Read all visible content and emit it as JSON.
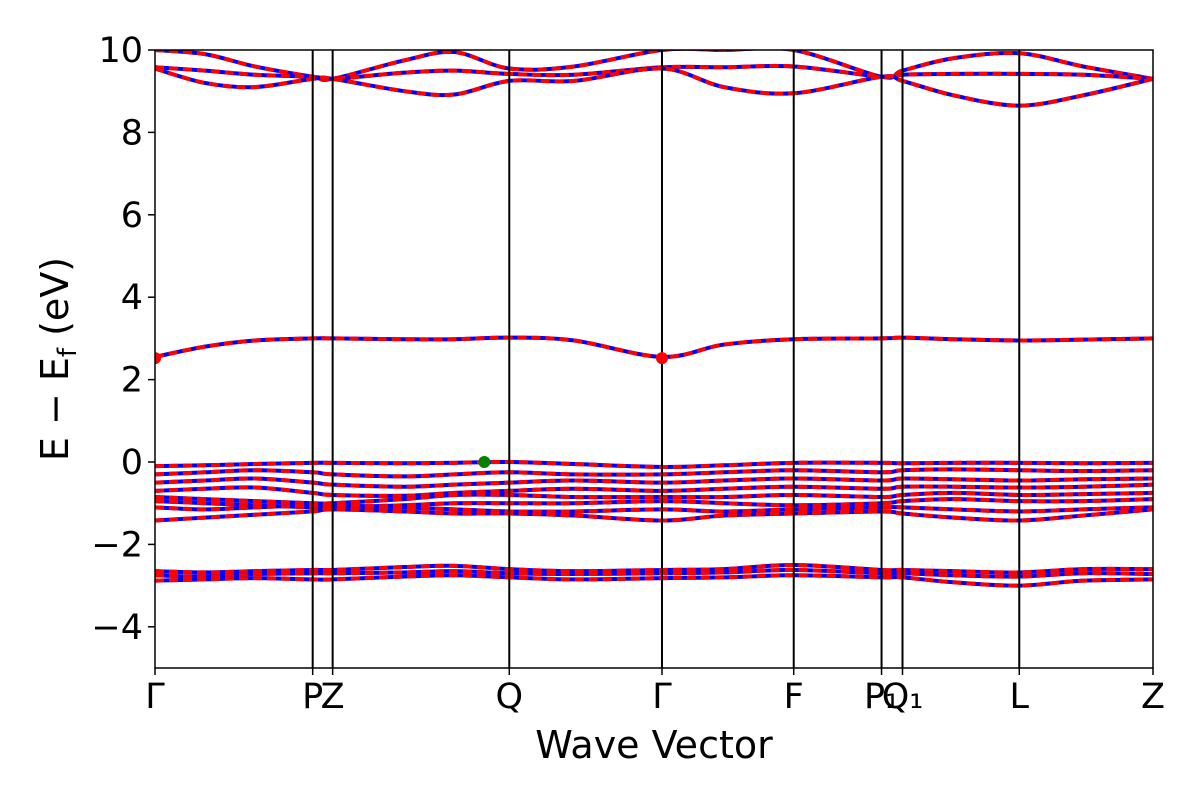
{
  "chart_data": {
    "type": "line",
    "title": "",
    "xlabel": "Wave Vector",
    "ylabel": "E − E",
    "ylabel_sub": "f",
    "ylabel_unit": " (eV)",
    "ylim": [
      -5,
      10
    ],
    "y_ticks": [
      {
        "value": -4,
        "label": "−4"
      },
      {
        "value": -2,
        "label": "−2"
      },
      {
        "value": 0,
        "label": "0"
      },
      {
        "value": 2,
        "label": "2"
      },
      {
        "value": 4,
        "label": "4"
      },
      {
        "value": 6,
        "label": "6"
      },
      {
        "value": 8,
        "label": "8"
      },
      {
        "value": 10,
        "label": "10"
      }
    ],
    "kpath": [
      {
        "label": "Γ",
        "position": 0.0
      },
      {
        "label": "P",
        "position": 0.158
      },
      {
        "label": "Z",
        "position": 0.178
      },
      {
        "label": "Q",
        "position": 0.355
      },
      {
        "label": "Γ",
        "position": 0.508
      },
      {
        "label": "F",
        "position": 0.64
      },
      {
        "label": "P₁",
        "position": 0.728
      },
      {
        "label": "Q₁",
        "position": 0.749
      },
      {
        "label": "L",
        "position": 0.866
      },
      {
        "label": "Z",
        "position": 1.0
      }
    ],
    "xlim": [
      0,
      1
    ],
    "series_colors": {
      "spin_up": "#0000ff",
      "spin_down": "#ff0000"
    },
    "bands": [
      {
        "group": "conduction-high",
        "x": [
          0,
          0.05,
          0.1,
          0.158,
          0.178,
          0.25,
          0.3,
          0.355,
          0.42,
          0.508,
          0.57,
          0.64,
          0.728,
          0.749,
          0.8,
          0.866,
          0.93,
          1.0
        ],
        "y": [
          10.0,
          9.9,
          9.6,
          9.35,
          9.3,
          9.75,
          9.95,
          9.55,
          9.6,
          10.0,
          10.0,
          10.0,
          9.35,
          9.5,
          9.8,
          9.92,
          9.6,
          9.3
        ]
      },
      {
        "group": "conduction-high",
        "x": [
          0,
          0.05,
          0.1,
          0.158,
          0.178,
          0.25,
          0.3,
          0.355,
          0.42,
          0.508,
          0.57,
          0.64,
          0.728,
          0.749,
          0.8,
          0.866,
          0.93,
          1.0
        ],
        "y": [
          9.58,
          9.5,
          9.4,
          9.35,
          9.3,
          9.45,
          9.5,
          9.42,
          9.4,
          9.58,
          9.58,
          9.6,
          9.35,
          9.4,
          9.42,
          9.42,
          9.4,
          9.3
        ]
      },
      {
        "group": "conduction-high",
        "x": [
          0,
          0.05,
          0.1,
          0.158,
          0.178,
          0.25,
          0.3,
          0.355,
          0.42,
          0.508,
          0.57,
          0.64,
          0.728,
          0.749,
          0.8,
          0.866,
          0.93,
          1.0
        ],
        "y": [
          9.55,
          9.2,
          9.1,
          9.3,
          9.3,
          9.0,
          8.92,
          9.25,
          9.25,
          9.55,
          9.1,
          8.95,
          9.35,
          9.25,
          8.9,
          8.65,
          8.9,
          9.3
        ]
      },
      {
        "group": "conduction-mid",
        "x": [
          0,
          0.05,
          0.1,
          0.158,
          0.178,
          0.25,
          0.3,
          0.355,
          0.42,
          0.508,
          0.57,
          0.64,
          0.728,
          0.749,
          0.8,
          0.866,
          0.93,
          1.0
        ],
        "y": [
          2.55,
          2.8,
          2.95,
          3.0,
          3.0,
          2.98,
          2.98,
          3.02,
          2.95,
          2.55,
          2.85,
          2.98,
          3.0,
          3.02,
          2.98,
          2.95,
          2.97,
          3.0
        ]
      },
      {
        "group": "valence",
        "x": [
          0,
          0.05,
          0.1,
          0.158,
          0.178,
          0.25,
          0.3,
          0.355,
          0.42,
          0.508,
          0.57,
          0.64,
          0.728,
          0.749,
          0.8,
          0.866,
          0.93,
          1.0
        ],
        "y": [
          -0.1,
          -0.08,
          -0.05,
          -0.02,
          -0.02,
          -0.03,
          -0.02,
          0.0,
          -0.05,
          -0.12,
          -0.08,
          -0.02,
          -0.02,
          -0.03,
          -0.02,
          -0.02,
          -0.03,
          -0.02
        ]
      },
      {
        "group": "valence",
        "x": [
          0,
          0.05,
          0.1,
          0.158,
          0.178,
          0.25,
          0.3,
          0.355,
          0.42,
          0.508,
          0.57,
          0.64,
          0.728,
          0.749,
          0.8,
          0.866,
          0.93,
          1.0
        ],
        "y": [
          -0.3,
          -0.25,
          -0.2,
          -0.25,
          -0.3,
          -0.35,
          -0.3,
          -0.25,
          -0.3,
          -0.3,
          -0.25,
          -0.2,
          -0.25,
          -0.2,
          -0.18,
          -0.2,
          -0.22,
          -0.2
        ]
      },
      {
        "group": "valence",
        "x": [
          0,
          0.05,
          0.1,
          0.158,
          0.178,
          0.25,
          0.3,
          0.355,
          0.42,
          0.508,
          0.57,
          0.64,
          0.728,
          0.749,
          0.8,
          0.866,
          0.93,
          1.0
        ],
        "y": [
          -0.5,
          -0.45,
          -0.4,
          -0.5,
          -0.55,
          -0.6,
          -0.55,
          -0.5,
          -0.45,
          -0.5,
          -0.45,
          -0.4,
          -0.45,
          -0.4,
          -0.42,
          -0.45,
          -0.42,
          -0.4
        ]
      },
      {
        "group": "valence",
        "x": [
          0,
          0.05,
          0.1,
          0.158,
          0.178,
          0.25,
          0.3,
          0.355,
          0.42,
          0.508,
          0.57,
          0.64,
          0.728,
          0.749,
          0.8,
          0.866,
          0.93,
          1.0
        ],
        "y": [
          -0.7,
          -0.65,
          -0.62,
          -0.75,
          -0.8,
          -0.82,
          -0.75,
          -0.7,
          -0.65,
          -0.7,
          -0.65,
          -0.6,
          -0.65,
          -0.6,
          -0.6,
          -0.62,
          -0.6,
          -0.55
        ]
      },
      {
        "group": "valence",
        "x": [
          0,
          0.05,
          0.1,
          0.158,
          0.178,
          0.25,
          0.3,
          0.355,
          0.42,
          0.508,
          0.57,
          0.64,
          0.728,
          0.749,
          0.8,
          0.866,
          0.93,
          1.0
        ],
        "y": [
          -0.85,
          -0.9,
          -0.95,
          -1.0,
          -1.0,
          -0.9,
          -0.8,
          -0.8,
          -0.85,
          -0.85,
          -0.85,
          -0.8,
          -0.85,
          -0.8,
          -0.75,
          -0.8,
          -0.78,
          -0.75
        ]
      },
      {
        "group": "valence",
        "x": [
          0,
          0.05,
          0.1,
          0.158,
          0.178,
          0.25,
          0.3,
          0.355,
          0.42,
          0.508,
          0.57,
          0.64,
          0.728,
          0.749,
          0.8,
          0.866,
          0.93,
          1.0
        ],
        "y": [
          -0.95,
          -1.0,
          -1.05,
          -1.1,
          -1.1,
          -1.05,
          -1.0,
          -1.0,
          -1.0,
          -0.95,
          -1.0,
          -1.05,
          -1.0,
          -0.95,
          -0.9,
          -0.95,
          -0.95,
          -0.9
        ]
      },
      {
        "group": "valence",
        "x": [
          0,
          0.05,
          0.1,
          0.158,
          0.178,
          0.25,
          0.3,
          0.355,
          0.42,
          0.508,
          0.57,
          0.64,
          0.728,
          0.749,
          0.8,
          0.866,
          0.93,
          1.0
        ],
        "y": [
          -1.1,
          -1.15,
          -1.1,
          -1.05,
          -1.05,
          -1.1,
          -1.15,
          -1.2,
          -1.2,
          -1.15,
          -1.2,
          -1.15,
          -1.1,
          -1.1,
          -1.15,
          -1.2,
          -1.15,
          -1.1
        ]
      },
      {
        "group": "valence",
        "x": [
          0,
          0.05,
          0.1,
          0.158,
          0.178,
          0.25,
          0.3,
          0.355,
          0.42,
          0.508,
          0.57,
          0.64,
          0.728,
          0.749,
          0.8,
          0.866,
          0.93,
          1.0
        ],
        "y": [
          -1.42,
          -1.35,
          -1.28,
          -1.2,
          -1.15,
          -1.2,
          -1.25,
          -1.25,
          -1.3,
          -1.42,
          -1.3,
          -1.25,
          -1.2,
          -1.25,
          -1.35,
          -1.42,
          -1.3,
          -1.15
        ]
      },
      {
        "group": "semicore",
        "x": [
          0,
          0.05,
          0.1,
          0.158,
          0.178,
          0.25,
          0.3,
          0.355,
          0.42,
          0.508,
          0.57,
          0.64,
          0.728,
          0.749,
          0.8,
          0.866,
          0.93,
          1.0
        ],
        "y": [
          -2.65,
          -2.68,
          -2.65,
          -2.62,
          -2.62,
          -2.55,
          -2.52,
          -2.6,
          -2.65,
          -2.62,
          -2.6,
          -2.5,
          -2.62,
          -2.62,
          -2.65,
          -2.68,
          -2.6,
          -2.6
        ]
      },
      {
        "group": "semicore",
        "x": [
          0,
          0.05,
          0.1,
          0.158,
          0.178,
          0.25,
          0.3,
          0.355,
          0.42,
          0.508,
          0.57,
          0.64,
          0.728,
          0.749,
          0.8,
          0.866,
          0.93,
          1.0
        ],
        "y": [
          -2.75,
          -2.78,
          -2.72,
          -2.7,
          -2.7,
          -2.68,
          -2.65,
          -2.7,
          -2.72,
          -2.7,
          -2.68,
          -2.62,
          -2.7,
          -2.7,
          -2.75,
          -2.78,
          -2.7,
          -2.72
        ]
      },
      {
        "group": "semicore",
        "x": [
          0,
          0.05,
          0.1,
          0.158,
          0.178,
          0.25,
          0.3,
          0.355,
          0.42,
          0.508,
          0.57,
          0.64,
          0.728,
          0.749,
          0.8,
          0.866,
          0.93,
          1.0
        ],
        "y": [
          -2.88,
          -2.85,
          -2.82,
          -2.85,
          -2.85,
          -2.78,
          -2.75,
          -2.8,
          -2.85,
          -2.82,
          -2.8,
          -2.75,
          -2.8,
          -2.8,
          -2.92,
          -3.0,
          -2.88,
          -2.85
        ]
      }
    ],
    "markers": [
      {
        "name": "CBM",
        "x": 0.0,
        "y": 2.52,
        "color": "#ff0000"
      },
      {
        "name": "CBM",
        "x": 0.508,
        "y": 2.52,
        "color": "#ff0000"
      },
      {
        "name": "VBM",
        "x": 0.33,
        "y": 0.0,
        "color": "#008000"
      }
    ]
  }
}
